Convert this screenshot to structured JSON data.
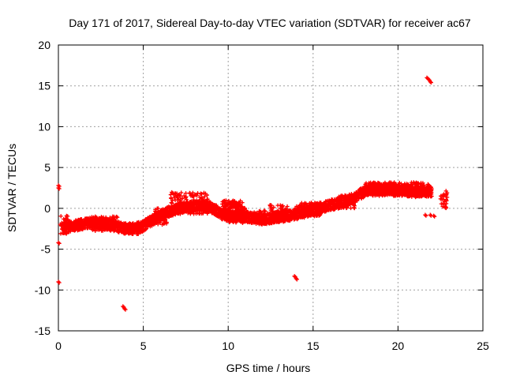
{
  "chart_data": {
    "type": "scatter",
    "title": "Day 171 of 2017, Sidereal Day-to-day VTEC variation (SDTVAR) for receiver ac67",
    "xlabel": "GPS time / hours",
    "ylabel": "SDTVAR / TECUs",
    "xlim": [
      0,
      25
    ],
    "ylim": [
      -15,
      20
    ],
    "xticks": [
      0,
      5,
      10,
      15,
      20,
      25
    ],
    "yticks": [
      -15,
      -10,
      -5,
      0,
      5,
      10,
      15,
      20
    ],
    "grid": true,
    "marker": "plus",
    "color": "#ff0000",
    "trend": [
      [
        0.25,
        -2.5
      ],
      [
        0.5,
        -2.3
      ],
      [
        1.0,
        -2.1
      ],
      [
        1.5,
        -1.9
      ],
      [
        2.0,
        -1.7
      ],
      [
        2.5,
        -1.8
      ],
      [
        3.0,
        -2.0
      ],
      [
        3.5,
        -2.3
      ],
      [
        4.0,
        -2.5
      ],
      [
        4.5,
        -2.4
      ],
      [
        5.0,
        -2.2
      ],
      [
        5.5,
        -1.5
      ],
      [
        6.0,
        -0.9
      ],
      [
        6.5,
        -0.4
      ],
      [
        7.0,
        -0.1
      ],
      [
        7.5,
        0.2
      ],
      [
        8.0,
        0.2
      ],
      [
        8.5,
        0.3
      ],
      [
        9.0,
        0.1
      ],
      [
        9.5,
        -0.5
      ],
      [
        10.0,
        -0.8
      ],
      [
        10.5,
        -1.1
      ],
      [
        11.0,
        -1.0
      ],
      [
        11.5,
        -1.2
      ],
      [
        12.0,
        -1.4
      ],
      [
        12.5,
        -1.2
      ],
      [
        13.0,
        -1.0
      ],
      [
        13.5,
        -0.9
      ],
      [
        14.0,
        -0.7
      ],
      [
        14.5,
        -0.5
      ],
      [
        15.0,
        -0.2
      ],
      [
        15.5,
        0.1
      ],
      [
        16.0,
        0.4
      ],
      [
        16.5,
        0.6
      ],
      [
        17.0,
        0.9
      ],
      [
        17.5,
        1.4
      ],
      [
        18.0,
        2.0
      ],
      [
        18.5,
        2.5
      ],
      [
        19.0,
        2.4
      ],
      [
        19.5,
        2.3
      ],
      [
        20.0,
        2.2
      ],
      [
        20.5,
        2.1
      ],
      [
        21.0,
        2.0
      ],
      [
        21.5,
        2.1
      ],
      [
        22.0,
        2.0
      ]
    ],
    "clusters": [
      {
        "x": [
          0.1,
          0.6
        ],
        "y": [
          -3.2,
          -0.8
        ]
      },
      {
        "x": [
          1.0,
          1.6
        ],
        "y": [
          -2.6,
          -1.3
        ]
      },
      {
        "x": [
          2.0,
          3.5
        ],
        "y": [
          -2.8,
          -1.0
        ]
      },
      {
        "x": [
          3.9,
          4.8
        ],
        "y": [
          -3.2,
          -1.9
        ]
      },
      {
        "x": [
          5.6,
          6.4
        ],
        "y": [
          -2.0,
          0.0
        ]
      },
      {
        "x": [
          6.6,
          8.8
        ],
        "y": [
          -0.7,
          2.0
        ]
      },
      {
        "x": [
          9.6,
          11.0
        ],
        "y": [
          -1.8,
          1.0
        ]
      },
      {
        "x": [
          11.5,
          12.2
        ],
        "y": [
          -1.8,
          -0.3
        ]
      },
      {
        "x": [
          12.4,
          13.5
        ],
        "y": [
          -1.7,
          0.4
        ]
      },
      {
        "x": [
          14.0,
          15.5
        ],
        "y": [
          -1.0,
          0.7
        ]
      },
      {
        "x": [
          16.5,
          17.5
        ],
        "y": [
          0.0,
          1.6
        ]
      },
      {
        "x": [
          18.0,
          21.8
        ],
        "y": [
          1.5,
          3.2
        ]
      },
      {
        "x": [
          22.5,
          22.9
        ],
        "y": [
          0.0,
          2.2
        ]
      }
    ],
    "outliers": [
      [
        3.8,
        -12.0
      ],
      [
        3.9,
        -12.3
      ],
      [
        13.9,
        -8.3
      ],
      [
        14.0,
        -8.6
      ],
      [
        21.6,
        -0.8
      ],
      [
        21.9,
        -0.8
      ],
      [
        22.1,
        -0.9
      ],
      [
        21.7,
        16.0
      ],
      [
        21.8,
        15.8
      ],
      [
        21.9,
        15.5
      ],
      [
        0.0,
        2.5
      ],
      [
        0.0,
        2.8
      ],
      [
        0.0,
        -4.2
      ],
      [
        0.0,
        -9.0
      ]
    ]
  }
}
